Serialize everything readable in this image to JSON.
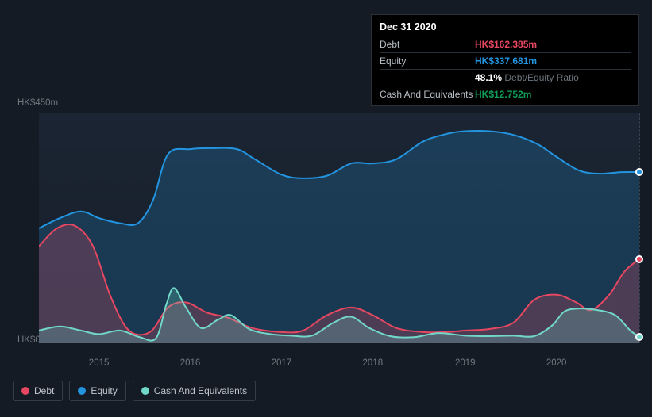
{
  "tooltip": {
    "date": "Dec 31 2020",
    "rows": {
      "debt_label": "Debt",
      "debt_value": "HK$162.385m",
      "equity_label": "Equity",
      "equity_value": "HK$337.681m",
      "ratio_pct": "48.1%",
      "ratio_label": "Debt/Equity Ratio",
      "cash_label": "Cash And Equivalents",
      "cash_value": "HK$12.752m"
    }
  },
  "chart": {
    "type": "area",
    "background_color": "#151b24",
    "plot_bg_gradient_top": "#1b2533",
    "plot_bg_gradient_bottom": "#161d28",
    "ylim": [
      0,
      450
    ],
    "y_axis": {
      "top_label": "HK$450m",
      "bottom_label": "HK$0"
    },
    "x_axis": {
      "ticks": [
        {
          "label": "2015",
          "t": 0.1
        },
        {
          "label": "2016",
          "t": 0.252
        },
        {
          "label": "2017",
          "t": 0.404
        },
        {
          "label": "2018",
          "t": 0.556
        },
        {
          "label": "2019",
          "t": 0.71
        },
        {
          "label": "2020",
          "t": 0.862
        }
      ]
    },
    "colors": {
      "debt": {
        "stroke": "#e64761",
        "fill": "rgba(230,71,97,0.25)"
      },
      "equity": {
        "stroke": "#2394df",
        "fill": "rgba(35,148,223,0.22)"
      },
      "cash": {
        "stroke": "#71d8c9",
        "fill": "rgba(113,216,201,0.25)"
      },
      "grid": "#394350",
      "axis_text": "#72787f"
    },
    "line_width": 2,
    "series": {
      "equity": [
        {
          "t": 0.0,
          "v": 225
        },
        {
          "t": 0.035,
          "v": 245
        },
        {
          "t": 0.07,
          "v": 258
        },
        {
          "t": 0.1,
          "v": 245
        },
        {
          "t": 0.135,
          "v": 235
        },
        {
          "t": 0.165,
          "v": 235
        },
        {
          "t": 0.19,
          "v": 280
        },
        {
          "t": 0.215,
          "v": 370
        },
        {
          "t": 0.252,
          "v": 380
        },
        {
          "t": 0.29,
          "v": 382
        },
        {
          "t": 0.33,
          "v": 380
        },
        {
          "t": 0.36,
          "v": 360
        },
        {
          "t": 0.404,
          "v": 330
        },
        {
          "t": 0.44,
          "v": 323
        },
        {
          "t": 0.48,
          "v": 328
        },
        {
          "t": 0.52,
          "v": 352
        },
        {
          "t": 0.556,
          "v": 352
        },
        {
          "t": 0.595,
          "v": 360
        },
        {
          "t": 0.64,
          "v": 395
        },
        {
          "t": 0.68,
          "v": 410
        },
        {
          "t": 0.71,
          "v": 415
        },
        {
          "t": 0.75,
          "v": 415
        },
        {
          "t": 0.79,
          "v": 408
        },
        {
          "t": 0.83,
          "v": 390
        },
        {
          "t": 0.862,
          "v": 365
        },
        {
          "t": 0.9,
          "v": 338
        },
        {
          "t": 0.935,
          "v": 332
        },
        {
          "t": 0.97,
          "v": 335
        },
        {
          "t": 1.0,
          "v": 335
        }
      ],
      "debt": [
        {
          "t": 0.0,
          "v": 190
        },
        {
          "t": 0.03,
          "v": 225
        },
        {
          "t": 0.06,
          "v": 230
        },
        {
          "t": 0.09,
          "v": 190
        },
        {
          "t": 0.12,
          "v": 90
        },
        {
          "t": 0.15,
          "v": 25
        },
        {
          "t": 0.185,
          "v": 22
        },
        {
          "t": 0.215,
          "v": 70
        },
        {
          "t": 0.245,
          "v": 80
        },
        {
          "t": 0.28,
          "v": 60
        },
        {
          "t": 0.315,
          "v": 50
        },
        {
          "t": 0.355,
          "v": 30
        },
        {
          "t": 0.404,
          "v": 22
        },
        {
          "t": 0.44,
          "v": 25
        },
        {
          "t": 0.48,
          "v": 55
        },
        {
          "t": 0.52,
          "v": 70
        },
        {
          "t": 0.556,
          "v": 55
        },
        {
          "t": 0.595,
          "v": 30
        },
        {
          "t": 0.64,
          "v": 22
        },
        {
          "t": 0.68,
          "v": 22
        },
        {
          "t": 0.71,
          "v": 25
        },
        {
          "t": 0.75,
          "v": 28
        },
        {
          "t": 0.79,
          "v": 40
        },
        {
          "t": 0.825,
          "v": 85
        },
        {
          "t": 0.862,
          "v": 95
        },
        {
          "t": 0.895,
          "v": 80
        },
        {
          "t": 0.92,
          "v": 65
        },
        {
          "t": 0.95,
          "v": 95
        },
        {
          "t": 0.975,
          "v": 140
        },
        {
          "t": 1.0,
          "v": 165
        }
      ],
      "cash": [
        {
          "t": 0.0,
          "v": 25
        },
        {
          "t": 0.035,
          "v": 33
        },
        {
          "t": 0.07,
          "v": 25
        },
        {
          "t": 0.1,
          "v": 18
        },
        {
          "t": 0.135,
          "v": 25
        },
        {
          "t": 0.168,
          "v": 12
        },
        {
          "t": 0.195,
          "v": 10
        },
        {
          "t": 0.212,
          "v": 75
        },
        {
          "t": 0.225,
          "v": 108
        },
        {
          "t": 0.245,
          "v": 70
        },
        {
          "t": 0.27,
          "v": 30
        },
        {
          "t": 0.298,
          "v": 46
        },
        {
          "t": 0.32,
          "v": 55
        },
        {
          "t": 0.35,
          "v": 28
        },
        {
          "t": 0.385,
          "v": 18
        },
        {
          "t": 0.42,
          "v": 15
        },
        {
          "t": 0.455,
          "v": 15
        },
        {
          "t": 0.49,
          "v": 40
        },
        {
          "t": 0.52,
          "v": 52
        },
        {
          "t": 0.55,
          "v": 30
        },
        {
          "t": 0.585,
          "v": 14
        },
        {
          "t": 0.625,
          "v": 12
        },
        {
          "t": 0.665,
          "v": 20
        },
        {
          "t": 0.71,
          "v": 15
        },
        {
          "t": 0.75,
          "v": 14
        },
        {
          "t": 0.79,
          "v": 15
        },
        {
          "t": 0.825,
          "v": 14
        },
        {
          "t": 0.855,
          "v": 35
        },
        {
          "t": 0.875,
          "v": 62
        },
        {
          "t": 0.9,
          "v": 68
        },
        {
          "t": 0.93,
          "v": 65
        },
        {
          "t": 0.96,
          "v": 55
        },
        {
          "t": 0.985,
          "v": 25
        },
        {
          "t": 1.0,
          "v": 13
        }
      ]
    },
    "hover_line_t": 1.0,
    "markers": [
      {
        "series": "equity",
        "t": 1.0,
        "v": 335,
        "color": "#2394df"
      },
      {
        "series": "debt",
        "t": 1.0,
        "v": 165,
        "color": "#e64761"
      },
      {
        "series": "cash",
        "t": 1.0,
        "v": 13,
        "color": "#71d8c9"
      }
    ]
  },
  "legend": {
    "items": [
      {
        "name": "debt",
        "label": "Debt",
        "color": "#e64761"
      },
      {
        "name": "equity",
        "label": "Equity",
        "color": "#2394df"
      },
      {
        "name": "cash",
        "label": "Cash And Equivalents",
        "color": "#71d8c9"
      }
    ]
  }
}
